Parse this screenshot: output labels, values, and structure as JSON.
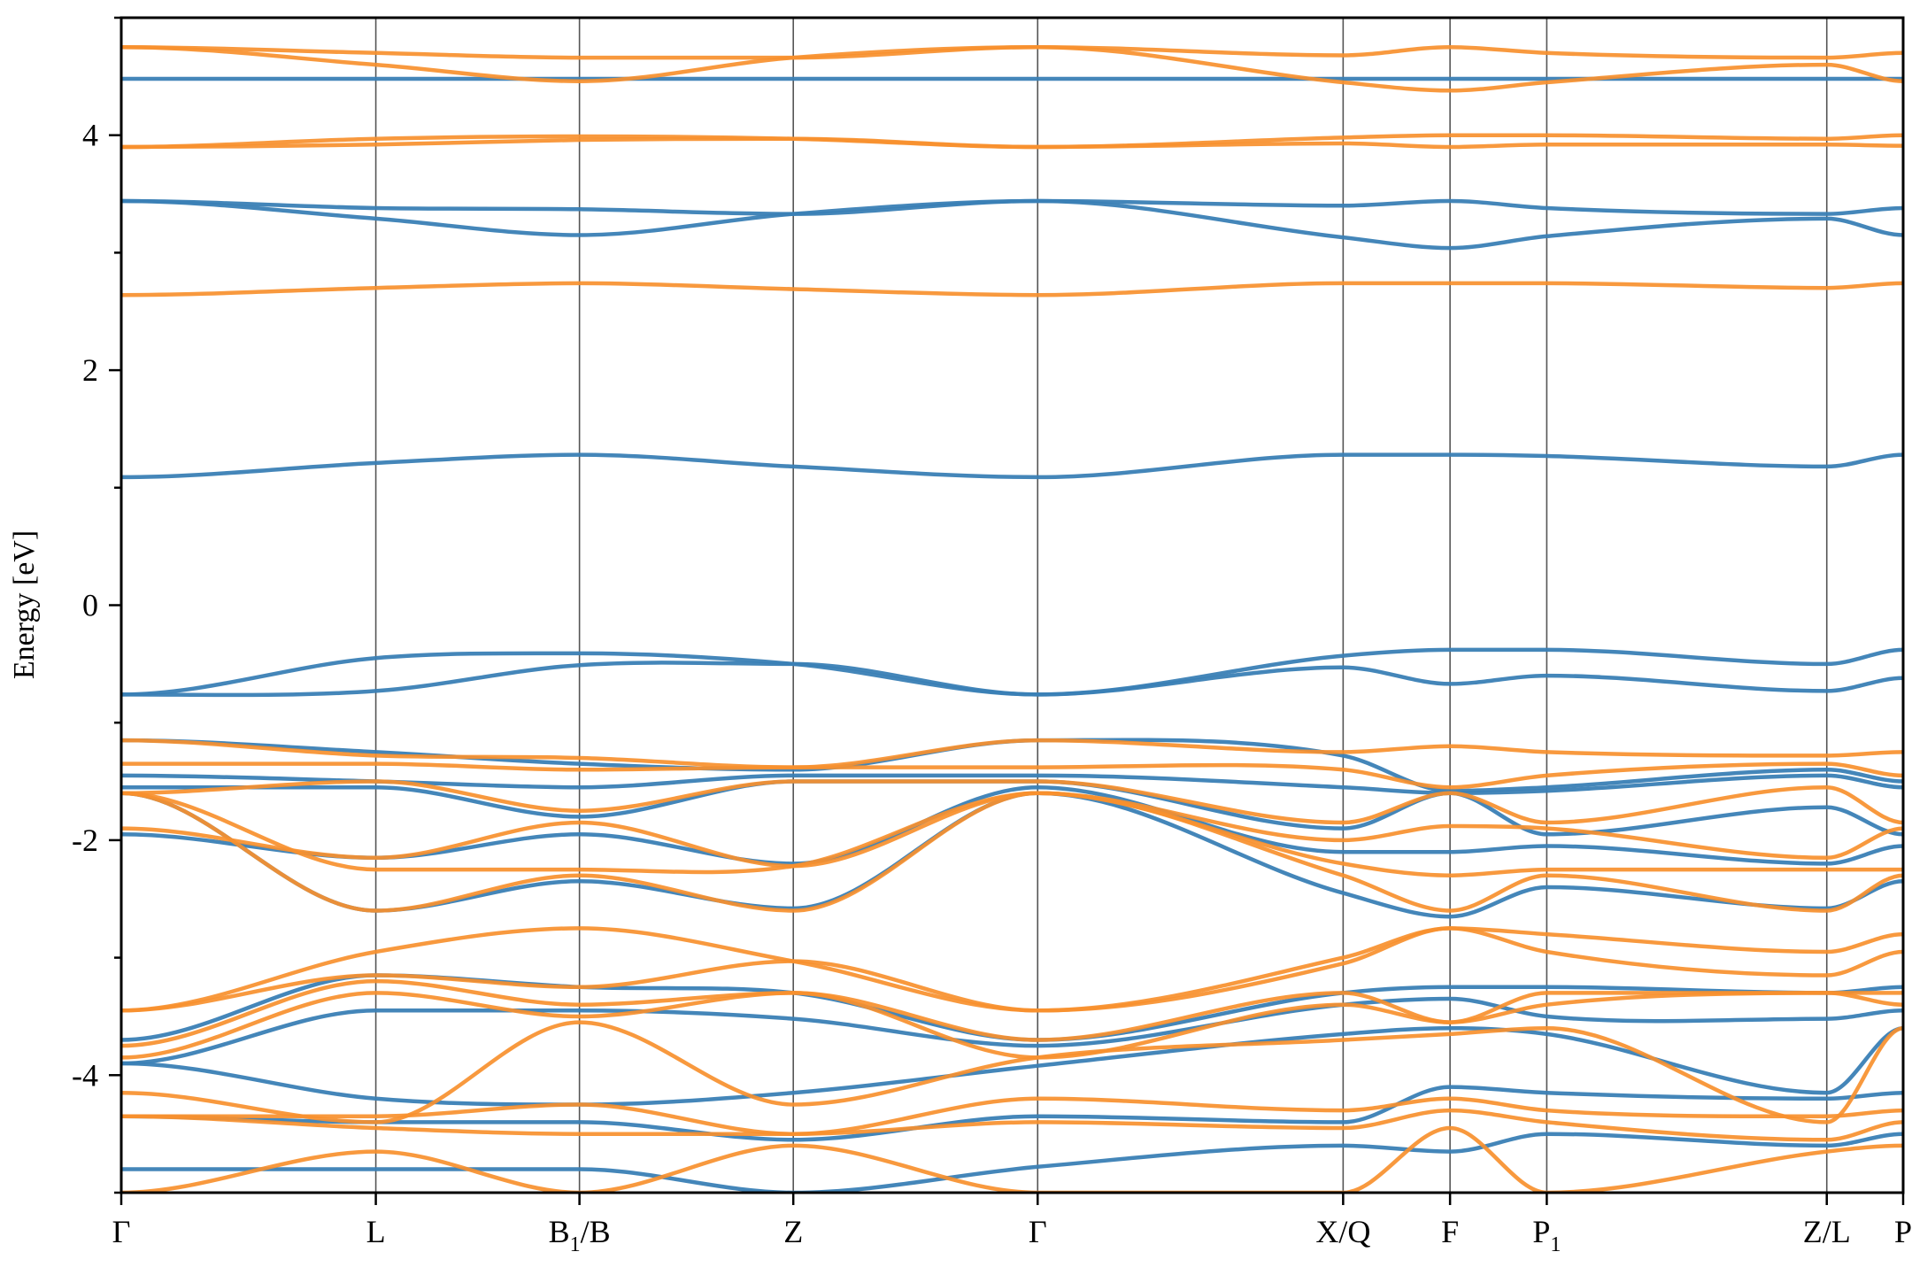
{
  "chart_data": {
    "type": "line",
    "title": "",
    "xlabel": "",
    "ylabel": "Energy [eV]",
    "ylim": [
      -5,
      5
    ],
    "grid": false,
    "yticks": [
      -4,
      -2,
      0,
      2,
      4
    ],
    "ytick_labels": [
      "-4",
      "-2",
      "0",
      "2",
      "4"
    ],
    "kpath": [
      {
        "label": "Γ",
        "sub": "",
        "x": 0.0
      },
      {
        "label": "L",
        "sub": "",
        "x": 1.0
      },
      {
        "label": "B",
        "sub": "1",
        "suffix": "/B",
        "x": 1.8
      },
      {
        "label": "Z",
        "sub": "",
        "x": 2.64
      },
      {
        "label": "Γ",
        "sub": "",
        "x": 3.6
      },
      {
        "label": "X/Q",
        "sub": "",
        "x": 4.8
      },
      {
        "label": "F",
        "sub": "",
        "x": 5.22
      },
      {
        "label": "P",
        "sub": "1",
        "suffix": "",
        "x": 5.6
      },
      {
        "label": "Z/L",
        "sub": "",
        "x": 6.7
      },
      {
        "label": "P",
        "sub": "",
        "x": 7.0
      }
    ],
    "series_colors": {
      "blue": "#3a7fb5",
      "orange": "#f7902e"
    },
    "series": [
      {
        "color": "blue",
        "x": [
          0,
          1,
          1.8,
          2.64,
          3.6,
          4.8,
          5.22,
          5.6,
          6.7,
          7.0
        ],
        "values": [
          4.48,
          4.48,
          4.48,
          4.48,
          4.48,
          4.48,
          4.48,
          4.48,
          4.48,
          4.48
        ]
      },
      {
        "color": "blue",
        "x": [
          0,
          1,
          1.8,
          2.64,
          3.6,
          4.8,
          5.22,
          5.6,
          6.7,
          7.0
        ],
        "values": [
          3.44,
          3.38,
          3.37,
          3.33,
          3.44,
          3.4,
          3.44,
          3.38,
          3.33,
          3.38
        ]
      },
      {
        "color": "blue",
        "x": [
          0,
          1,
          1.8,
          2.64,
          3.6,
          4.8,
          5.22,
          5.6,
          6.7,
          7.0
        ],
        "values": [
          3.44,
          3.29,
          3.15,
          3.33,
          3.44,
          3.13,
          3.04,
          3.14,
          3.29,
          3.15
        ]
      },
      {
        "color": "blue",
        "x": [
          0,
          1,
          1.8,
          2.64,
          3.6,
          4.8,
          5.22,
          5.6,
          6.7,
          7.0
        ],
        "values": [
          1.09,
          1.21,
          1.28,
          1.18,
          1.09,
          1.28,
          1.28,
          1.27,
          1.18,
          1.28
        ]
      },
      {
        "color": "blue",
        "x": [
          0,
          1,
          1.8,
          2.64,
          3.6,
          4.8,
          5.22,
          5.6,
          6.7,
          7.0
        ],
        "values": [
          -0.76,
          -0.45,
          -0.41,
          -0.5,
          -0.76,
          -0.43,
          -0.38,
          -0.38,
          -0.5,
          -0.38
        ]
      },
      {
        "color": "blue",
        "x": [
          0,
          1,
          1.8,
          2.64,
          3.6,
          4.8,
          5.22,
          5.6,
          6.7,
          7.0
        ],
        "values": [
          -0.76,
          -0.73,
          -0.51,
          -0.5,
          -0.76,
          -0.53,
          -0.67,
          -0.6,
          -0.73,
          -0.62
        ]
      },
      {
        "color": "blue",
        "x": [
          0,
          1,
          1.8,
          2.64,
          3.6,
          4.8,
          5.22,
          5.6,
          6.7,
          7.0
        ],
        "values": [
          -1.15,
          -1.25,
          -1.35,
          -1.4,
          -1.15,
          -1.28,
          -1.58,
          -1.55,
          -1.4,
          -1.5
        ]
      },
      {
        "color": "blue",
        "x": [
          0,
          1,
          1.8,
          2.64,
          3.6,
          4.8,
          5.22,
          5.6,
          6.7,
          7.0
        ],
        "values": [
          -1.45,
          -1.5,
          -1.55,
          -1.45,
          -1.45,
          -1.55,
          -1.6,
          -1.58,
          -1.45,
          -1.55
        ]
      },
      {
        "color": "blue",
        "x": [
          0,
          1,
          1.8,
          2.64,
          3.6,
          4.8,
          5.22,
          5.6,
          6.7,
          7.0
        ],
        "values": [
          -1.55,
          -1.55,
          -1.8,
          -1.5,
          -1.5,
          -1.9,
          -1.6,
          -1.95,
          -1.72,
          -1.95
        ]
      },
      {
        "color": "blue",
        "x": [
          0,
          1,
          1.8,
          2.64,
          3.6,
          4.8,
          5.22,
          5.6,
          6.7,
          7.0
        ],
        "values": [
          -1.95,
          -2.15,
          -1.95,
          -2.2,
          -1.55,
          -2.1,
          -2.1,
          -2.05,
          -2.2,
          -2.05
        ]
      },
      {
        "color": "blue",
        "x": [
          0,
          1,
          1.8,
          2.64,
          3.6,
          4.8,
          5.22,
          5.6,
          6.7,
          7.0
        ],
        "values": [
          -1.6,
          -2.6,
          -2.35,
          -2.58,
          -1.6,
          -2.45,
          -2.65,
          -2.4,
          -2.58,
          -2.35
        ]
      },
      {
        "color": "blue",
        "x": [
          0,
          1,
          1.8,
          2.64,
          3.6,
          4.8,
          5.22,
          5.6,
          6.7,
          7.0
        ],
        "values": [
          -3.7,
          -3.15,
          -3.25,
          -3.3,
          -3.7,
          -3.3,
          -3.25,
          -3.25,
          -3.3,
          -3.25
        ]
      },
      {
        "color": "blue",
        "x": [
          0,
          1,
          1.8,
          2.64,
          3.6,
          4.8,
          5.22,
          5.6,
          6.7,
          7.0
        ],
        "values": [
          -3.9,
          -3.45,
          -3.45,
          -3.52,
          -3.75,
          -3.4,
          -3.35,
          -3.5,
          -3.52,
          -3.45
        ]
      },
      {
        "color": "blue",
        "x": [
          0,
          1,
          1.8,
          2.64,
          3.6,
          4.8,
          5.22,
          5.6,
          6.7,
          7.0
        ],
        "values": [
          -3.9,
          -4.2,
          -4.25,
          -4.15,
          -3.92,
          -3.65,
          -3.6,
          -3.65,
          -4.15,
          -3.6
        ]
      },
      {
        "color": "blue",
        "x": [
          0,
          1,
          1.8,
          2.64,
          3.6,
          4.8,
          5.22,
          5.6,
          6.7,
          7.0
        ],
        "values": [
          -4.35,
          -4.4,
          -4.4,
          -4.55,
          -4.35,
          -4.4,
          -4.1,
          -4.15,
          -4.2,
          -4.15
        ]
      },
      {
        "color": "blue",
        "x": [
          0,
          1,
          1.8,
          2.64,
          3.6,
          4.8,
          5.22,
          5.6,
          6.7,
          7.0
        ],
        "values": [
          -4.8,
          -4.8,
          -4.8,
          -5.0,
          -4.78,
          -4.6,
          -4.65,
          -4.5,
          -4.6,
          -4.5
        ]
      },
      {
        "color": "orange",
        "x": [
          0,
          1,
          1.8,
          2.64,
          3.6,
          4.8,
          5.22,
          5.6,
          6.7,
          7.0
        ],
        "values": [
          4.75,
          4.7,
          4.66,
          4.66,
          4.75,
          4.68,
          4.75,
          4.7,
          4.66,
          4.7
        ]
      },
      {
        "color": "orange",
        "x": [
          0,
          1,
          1.8,
          2.64,
          3.6,
          4.8,
          5.22,
          5.6,
          6.7,
          7.0
        ],
        "values": [
          4.75,
          4.6,
          4.46,
          4.66,
          4.75,
          4.45,
          4.38,
          4.45,
          4.6,
          4.46
        ]
      },
      {
        "color": "orange",
        "x": [
          0,
          1,
          1.8,
          2.64,
          3.6,
          4.8,
          5.22,
          5.6,
          6.7,
          7.0
        ],
        "values": [
          3.9,
          3.97,
          3.99,
          3.97,
          3.9,
          3.98,
          4.0,
          4.0,
          3.97,
          4.0
        ]
      },
      {
        "color": "orange",
        "x": [
          0,
          1,
          1.8,
          2.64,
          3.6,
          4.8,
          5.22,
          5.6,
          6.7,
          7.0
        ],
        "values": [
          3.9,
          3.92,
          3.96,
          3.97,
          3.9,
          3.93,
          3.9,
          3.92,
          3.92,
          3.91
        ]
      },
      {
        "color": "orange",
        "x": [
          0,
          1,
          1.8,
          2.64,
          3.6,
          4.8,
          5.22,
          5.6,
          6.7,
          7.0
        ],
        "values": [
          2.64,
          2.7,
          2.74,
          2.69,
          2.64,
          2.74,
          2.74,
          2.74,
          2.7,
          2.74
        ]
      },
      {
        "color": "orange",
        "x": [
          0,
          1,
          1.8,
          2.64,
          3.6,
          4.8,
          5.22,
          5.6,
          6.7,
          7.0
        ],
        "values": [
          -1.15,
          -1.28,
          -1.3,
          -1.38,
          -1.15,
          -1.25,
          -1.2,
          -1.25,
          -1.28,
          -1.25
        ]
      },
      {
        "color": "orange",
        "x": [
          0,
          1,
          1.8,
          2.64,
          3.6,
          4.8,
          5.22,
          5.6,
          6.7,
          7.0
        ],
        "values": [
          -1.35,
          -1.35,
          -1.4,
          -1.38,
          -1.38,
          -1.4,
          -1.55,
          -1.45,
          -1.35,
          -1.45
        ]
      },
      {
        "color": "orange",
        "x": [
          0,
          1,
          1.8,
          2.64,
          3.6,
          4.8,
          5.22,
          5.6,
          6.7,
          7.0
        ],
        "values": [
          -1.6,
          -1.5,
          -1.75,
          -1.5,
          -1.5,
          -1.85,
          -1.6,
          -1.85,
          -1.55,
          -1.85
        ]
      },
      {
        "color": "orange",
        "x": [
          0,
          1,
          1.8,
          2.64,
          3.6,
          4.8,
          5.22,
          5.6,
          6.7,
          7.0
        ],
        "values": [
          -1.9,
          -2.15,
          -1.85,
          -2.22,
          -1.6,
          -2.0,
          -1.88,
          -1.9,
          -2.15,
          -1.9
        ]
      },
      {
        "color": "orange",
        "x": [
          0,
          1,
          1.8,
          2.64,
          3.6,
          4.8,
          5.22,
          5.6,
          6.7,
          7.0
        ],
        "values": [
          -1.6,
          -2.25,
          -2.25,
          -2.22,
          -1.6,
          -2.2,
          -2.3,
          -2.25,
          -2.25,
          -2.25
        ]
      },
      {
        "color": "orange",
        "x": [
          0,
          1,
          1.8,
          2.64,
          3.6,
          4.8,
          5.22,
          5.6,
          6.7,
          7.0
        ],
        "values": [
          -1.6,
          -2.6,
          -2.3,
          -2.6,
          -1.6,
          -2.3,
          -2.6,
          -2.3,
          -2.6,
          -2.3
        ]
      },
      {
        "color": "orange",
        "x": [
          0,
          1,
          1.8,
          2.64,
          3.6,
          4.8,
          5.22,
          5.6,
          6.7,
          7.0
        ],
        "values": [
          -3.45,
          -2.95,
          -2.75,
          -3.03,
          -3.45,
          -3.05,
          -2.75,
          -2.8,
          -2.95,
          -2.8
        ]
      },
      {
        "color": "orange",
        "x": [
          0,
          1,
          1.8,
          2.64,
          3.6,
          4.8,
          5.22,
          5.6,
          6.7,
          7.0
        ],
        "values": [
          -3.45,
          -3.15,
          -3.25,
          -3.03,
          -3.45,
          -3.0,
          -2.75,
          -2.95,
          -3.15,
          -2.95
        ]
      },
      {
        "color": "orange",
        "x": [
          0,
          1,
          1.8,
          2.64,
          3.6,
          4.8,
          5.22,
          5.6,
          6.7,
          7.0
        ],
        "values": [
          -3.75,
          -3.2,
          -3.4,
          -3.3,
          -3.7,
          -3.3,
          -3.55,
          -3.3,
          -3.3,
          -3.3
        ]
      },
      {
        "color": "orange",
        "x": [
          0,
          1,
          1.8,
          2.64,
          3.6,
          4.8,
          5.22,
          5.6,
          6.7,
          7.0
        ],
        "values": [
          -3.85,
          -3.3,
          -3.5,
          -3.3,
          -3.85,
          -3.4,
          -3.55,
          -3.4,
          -3.3,
          -3.4
        ]
      },
      {
        "color": "orange",
        "x": [
          0,
          1,
          1.8,
          2.64,
          3.6,
          4.8,
          5.22,
          5.6,
          6.7,
          7.0
        ],
        "values": [
          -4.15,
          -4.4,
          -3.55,
          -4.25,
          -3.85,
          -3.7,
          -3.65,
          -3.6,
          -4.4,
          -3.6
        ]
      },
      {
        "color": "orange",
        "x": [
          0,
          1,
          1.8,
          2.64,
          3.6,
          4.8,
          5.22,
          5.6,
          6.7,
          7.0
        ],
        "values": [
          -4.35,
          -4.35,
          -4.25,
          -4.5,
          -4.2,
          -4.3,
          -4.2,
          -4.3,
          -4.35,
          -4.3
        ]
      },
      {
        "color": "orange",
        "x": [
          0,
          1,
          1.8,
          2.64,
          3.6,
          4.8,
          5.22,
          5.6,
          6.7,
          7.0
        ],
        "values": [
          -4.35,
          -4.45,
          -4.5,
          -4.5,
          -4.4,
          -4.45,
          -4.3,
          -4.4,
          -4.55,
          -4.4
        ]
      },
      {
        "color": "orange",
        "x": [
          0,
          1,
          1.8,
          2.64,
          3.6,
          4.8,
          5.22,
          5.6,
          6.7,
          7.0
        ],
        "values": [
          -5.0,
          -4.65,
          -5.0,
          -4.6,
          -5.0,
          -5.0,
          -4.45,
          -5.0,
          -4.65,
          -4.6
        ]
      }
    ]
  }
}
